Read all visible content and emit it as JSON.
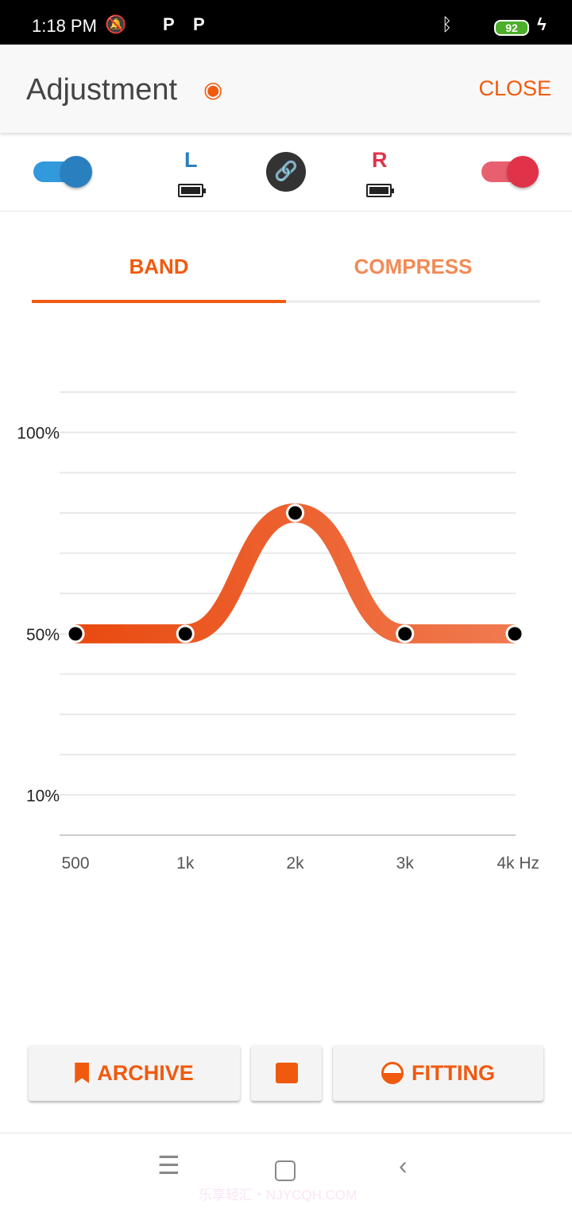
{
  "status": {
    "time": "1:18 PM",
    "battery": "92",
    "icons": [
      "mute-icon",
      "app-icon",
      "p-icon",
      "p-icon",
      "bluetooth-icon",
      "signal-icon",
      "battery-icon",
      "charging-icon"
    ]
  },
  "appbar": {
    "title": "Adjustment",
    "close": "CLOSE"
  },
  "devices": {
    "left_label": "L",
    "right_label": "R",
    "left_enabled": true,
    "right_enabled": true,
    "left_color": "#2a7fbf",
    "right_color": "#e0334a"
  },
  "tabs": [
    {
      "label": "BAND",
      "active": true
    },
    {
      "label": "COMPRESS",
      "active": false
    }
  ],
  "accent": "#f05a0f",
  "chart_data": {
    "type": "line",
    "categories": [
      "500",
      "1k",
      "2k",
      "3k",
      "4k Hz"
    ],
    "values": [
      50,
      50,
      80,
      50,
      50
    ],
    "ytick_labels": [
      "100%",
      "50%",
      "10%"
    ],
    "yticks": [
      100,
      50,
      10
    ],
    "ylim": [
      0,
      110
    ],
    "grid": true
  },
  "buttons": {
    "archive": "ARCHIVE",
    "fitting": "FITTING"
  },
  "watermark": "乐享轻汇・NJYCQH.COM"
}
